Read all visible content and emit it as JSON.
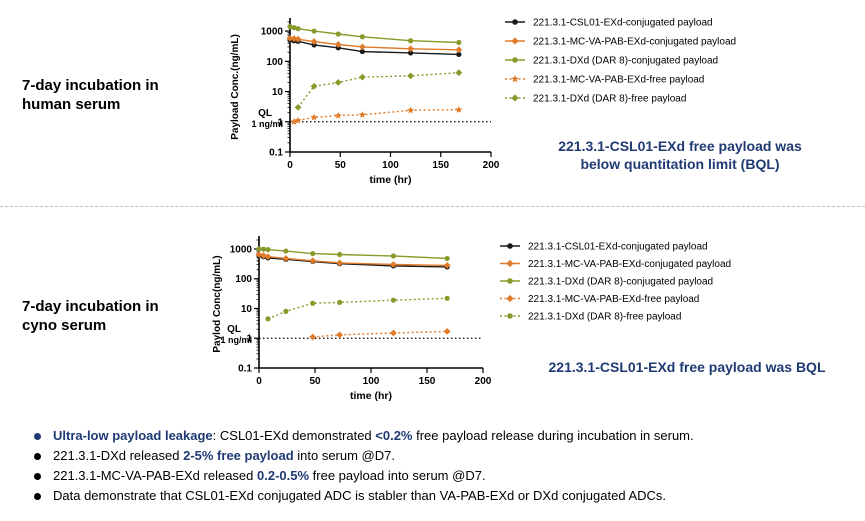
{
  "panels": [
    {
      "label_line1": "7-day incubation in",
      "label_line2": "human serum",
      "note_line1": "221.3.1-CSL01-EXd free payload was",
      "note_line2": "below quantitation limit (BQL)"
    },
    {
      "label_line1": "7-day incubation in",
      "label_line2": "cyno serum",
      "note_line1": "221.3.1-CSL01-EXd free payload was BQL",
      "note_line2": ""
    }
  ],
  "colors": {
    "black": "#1a1a1a",
    "orange": "#e07b2a",
    "olive": "#8a9a2a",
    "navy": "#1f3a73"
  },
  "chart_data": [
    {
      "type": "line",
      "ylabel": "Payload Conc.(ng/mL)",
      "xlabel": "time (hr)",
      "xlim": [
        0,
        200
      ],
      "xticks": [
        "0",
        "50",
        "100",
        "150",
        "200"
      ],
      "ylim": [
        0.1,
        2000
      ],
      "yscale": "log",
      "yticks": [
        "0.1",
        "1",
        "10",
        "100",
        "1000"
      ],
      "ql_label": "QL",
      "ql_sublabel": "1 ng/ml",
      "ql_value": 1,
      "legend_position": "right",
      "series": [
        {
          "name": "221.3.1-CSL01-EXd-conjugated payload",
          "color": "#1a1a1a",
          "marker": "circle",
          "dashed": false,
          "x": [
            0,
            4,
            8,
            24,
            48,
            72,
            120,
            168
          ],
          "y": [
            500,
            480,
            460,
            350,
            280,
            210,
            190,
            170
          ]
        },
        {
          "name": "221.3.1-MC-VA-PAB-EXd-conjugated payload",
          "color": "#e07b2a",
          "marker": "diamond",
          "dashed": false,
          "x": [
            0,
            4,
            8,
            24,
            48,
            72,
            120,
            168
          ],
          "y": [
            580,
            560,
            540,
            450,
            360,
            300,
            260,
            240
          ]
        },
        {
          "name": "221.3.1-DXd (DAR 8)-conjugated payload",
          "color": "#8a9a2a",
          "marker": "circle",
          "dashed": false,
          "x": [
            0,
            4,
            8,
            24,
            48,
            72,
            120,
            168
          ],
          "y": [
            1400,
            1300,
            1200,
            1000,
            800,
            650,
            480,
            420
          ]
        },
        {
          "name": "221.3.1-MC-VA-PAB-EXd-free payload",
          "color": "#e07b2a",
          "marker": "star",
          "dashed": true,
          "x": [
            4,
            8,
            24,
            48,
            72,
            120,
            168
          ],
          "y": [
            1.0,
            1.1,
            1.4,
            1.6,
            1.7,
            2.4,
            2.5
          ]
        },
        {
          "name": "221.3.1-DXd (DAR 8)-free payload",
          "color": "#8a9a2a",
          "marker": "diamond",
          "dashed": true,
          "x": [
            8,
            24,
            48,
            72,
            120,
            168
          ],
          "y": [
            3,
            15,
            20,
            30,
            33,
            42
          ]
        }
      ]
    },
    {
      "type": "line",
      "ylabel": "Paylod Conc(ng/mL)",
      "xlabel": "time (hr)",
      "xlim": [
        0,
        200
      ],
      "xticks": [
        "0",
        "50",
        "100",
        "150",
        "200"
      ],
      "ylim": [
        0.1,
        2000
      ],
      "yscale": "log",
      "yticks": [
        "0.1",
        "1",
        "10",
        "100",
        "1000"
      ],
      "ql_label": "QL",
      "ql_sublabel": "1 ng/ml",
      "ql_value": 1,
      "legend_position": "right",
      "series": [
        {
          "name": "221.3.1-CSL01-EXd-conjugated payload",
          "color": "#1a1a1a",
          "marker": "circle",
          "dashed": false,
          "x": [
            0,
            4,
            8,
            24,
            48,
            72,
            120,
            168
          ],
          "y": [
            600,
            550,
            500,
            450,
            380,
            320,
            270,
            250
          ]
        },
        {
          "name": "221.3.1-MC-VA-PAB-EXd-conjugated payload",
          "color": "#e07b2a",
          "marker": "diamond",
          "dashed": false,
          "x": [
            0,
            4,
            8,
            24,
            48,
            72,
            120,
            168
          ],
          "y": [
            650,
            600,
            550,
            480,
            400,
            340,
            300,
            280
          ]
        },
        {
          "name": "221.3.1-DXd (DAR 8)-conjugated payload",
          "color": "#8a9a2a",
          "marker": "circle",
          "dashed": false,
          "x": [
            0,
            4,
            8,
            24,
            48,
            72,
            120,
            168
          ],
          "y": [
            1000,
            980,
            950,
            850,
            700,
            650,
            580,
            480
          ]
        },
        {
          "name": "221.3.1-MC-VA-PAB-EXd-free payload",
          "color": "#e07b2a",
          "marker": "diamond",
          "dashed": true,
          "x": [
            48,
            72,
            120,
            168
          ],
          "y": [
            1.1,
            1.3,
            1.5,
            1.7
          ]
        },
        {
          "name": "221.3.1-DXd (DAR 8)-free payload",
          "color": "#8a9a2a",
          "marker": "circle",
          "dashed": true,
          "x": [
            8,
            24,
            48,
            72,
            120,
            168
          ],
          "y": [
            4.5,
            8,
            15,
            16,
            19,
            22
          ]
        }
      ]
    }
  ],
  "bullets": [
    {
      "blue_dot": true,
      "parts": [
        {
          "text": "Ultra-low payload leakage",
          "style": "navy"
        },
        {
          "text": ": CSL01-EXd demonstrated ",
          "style": "plain"
        },
        {
          "text": "<0.2%",
          "style": "navy"
        },
        {
          "text": " free payload release during incubation in serum.",
          "style": "plain"
        }
      ]
    },
    {
      "blue_dot": false,
      "parts": [
        {
          "text": "221.3.1-DXd released ",
          "style": "plain"
        },
        {
          "text": "2-5% free payload",
          "style": "navy"
        },
        {
          "text": " into serum @D7.",
          "style": "plain"
        }
      ]
    },
    {
      "blue_dot": false,
      "parts": [
        {
          "text": "221.3.1-MC-VA-PAB-EXd released ",
          "style": "plain"
        },
        {
          "text": "0.2-0.5%",
          "style": "navy"
        },
        {
          "text": " free payload into serum @D7.",
          "style": "plain"
        }
      ]
    },
    {
      "blue_dot": false,
      "parts": [
        {
          "text": "Data demonstrate that CSL01-EXd conjugated ADC is stabler than VA-PAB-EXd or DXd conjugated ADCs.",
          "style": "plain"
        }
      ]
    }
  ]
}
